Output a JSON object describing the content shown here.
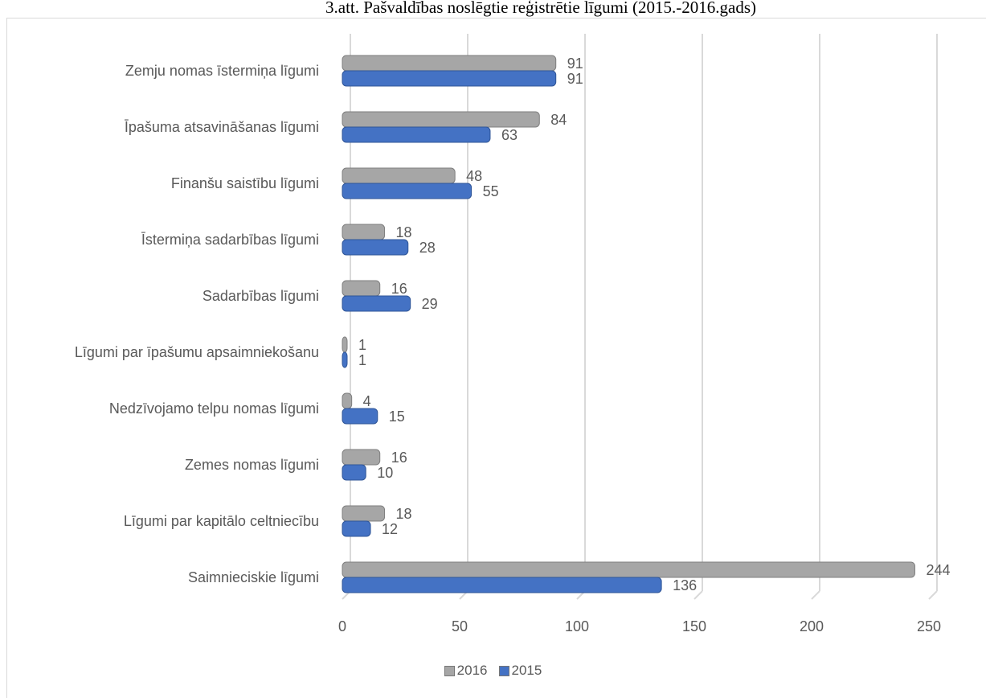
{
  "caption": "3.att. Pašvaldības noslēgtie reģistrētie līgumi (2015.-2016.gads)",
  "colors": {
    "s2016": "#a6a6a6",
    "s2015": "#4472c4",
    "grid": "#d9d9d9",
    "text": "#595959"
  },
  "chart_data": {
    "type": "bar",
    "orientation": "horizontal",
    "categories": [
      "Zemju nomas īstermiņa līgumi",
      "Īpašuma atsavināšanas līgumi",
      "Finanšu saistību līgumi",
      "Īstermiņa sadarbības līgumi",
      "Sadarbības līgumi",
      "Līgumi par īpašumu apsaimniekošanu",
      "Nedzīvojamo telpu nomas līgumi",
      "Zemes nomas līgumi",
      "Līgumi par kapitālo celtniecību",
      "Saimnieciskie līgumi"
    ],
    "series": [
      {
        "name": "2016",
        "values": [
          91,
          84,
          48,
          18,
          16,
          1,
          4,
          16,
          18,
          244
        ]
      },
      {
        "name": "2015",
        "values": [
          91,
          63,
          55,
          28,
          29,
          1,
          15,
          10,
          12,
          136
        ]
      }
    ],
    "xlim": [
      0,
      250
    ],
    "xticks": [
      "0",
      "50",
      "100",
      "150",
      "200",
      "250"
    ],
    "grid": true,
    "legend_position": "bottom",
    "data_labels": true
  },
  "legend": {
    "items": [
      "2016",
      "2015"
    ]
  }
}
